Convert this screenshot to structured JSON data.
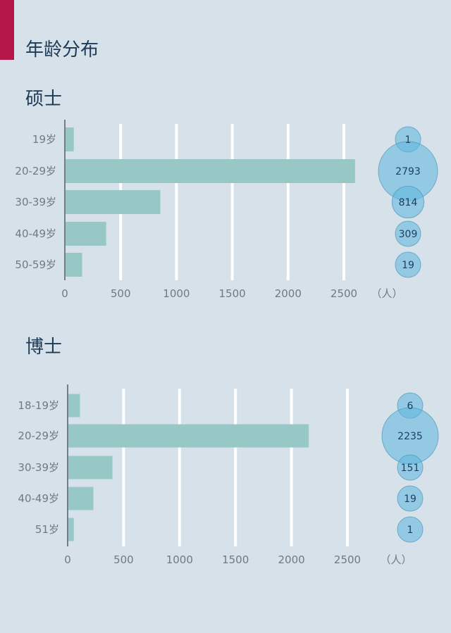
{
  "page": {
    "title": "年龄分布"
  },
  "colors": {
    "accent": "#b5174a",
    "background": "#d6e1e9",
    "bar": "#98c8c6",
    "bubble": "#5fb6df",
    "grid": "#ffffff",
    "text_title": "#1d3a57",
    "text_axis": "#6f7a84"
  },
  "chart_data": [
    {
      "type": "bar",
      "orientation": "horizontal",
      "title": "硕士",
      "categories": [
        "19岁",
        "20-29岁",
        "30-39岁",
        "40-49岁",
        "50-59岁"
      ],
      "values": [
        80,
        2600,
        855,
        370,
        155
      ],
      "bubble_values": [
        1,
        2793,
        814,
        309,
        19
      ],
      "xlim": [
        0,
        2500
      ],
      "xticks": [
        0,
        500,
        1000,
        1500,
        2000,
        2500
      ],
      "xunit": "（人）",
      "grid": true
    },
    {
      "type": "bar",
      "orientation": "horizontal",
      "title": "博士",
      "categories": [
        "18-19岁",
        "20-29岁",
        "30-39岁",
        "40-49岁",
        "51岁"
      ],
      "values": [
        110,
        2155,
        400,
        230,
        55
      ],
      "bubble_values": [
        6,
        2235,
        151,
        19,
        1
      ],
      "xlim": [
        0,
        2500
      ],
      "xticks": [
        0,
        500,
        1000,
        1500,
        2000,
        2500
      ],
      "xunit": "（人）",
      "grid": true
    }
  ]
}
